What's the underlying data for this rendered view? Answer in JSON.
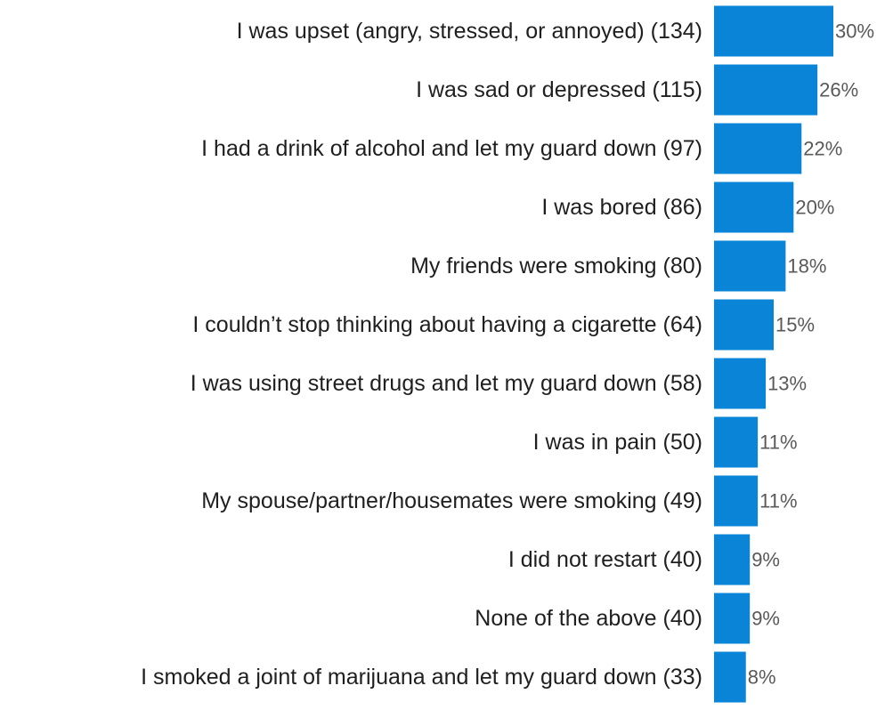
{
  "chart_data": {
    "type": "bar",
    "orientation": "horizontal",
    "categories": [
      "I was upset (angry, stressed, or annoyed) (134)",
      "I was sad or depressed (115)",
      "I had a drink of alcohol and let my guard down (97)",
      "I was bored (86)",
      "My friends were smoking (80)",
      "I couldn’t stop thinking about having a cigarette (64)",
      "I was using street drugs and let my guard down (58)",
      "I was in pain (50)",
      "My spouse/partner/housemates were smoking (49)",
      "I did not restart (40)",
      "None of the above (40)",
      "I smoked a joint of marijuana and let my guard down (33)"
    ],
    "values": [
      30,
      26,
      22,
      20,
      18,
      15,
      13,
      11,
      11,
      9,
      9,
      8
    ],
    "value_labels": [
      "30%",
      "26%",
      "22%",
      "20%",
      "18%",
      "15%",
      "13%",
      "11%",
      "11%",
      "9%",
      "9%",
      "8%"
    ],
    "title": "",
    "xlabel": "",
    "ylabel": "",
    "xlim": [
      0,
      30
    ],
    "grid": false,
    "legend": "none",
    "bar_color": "#0a84d6"
  }
}
